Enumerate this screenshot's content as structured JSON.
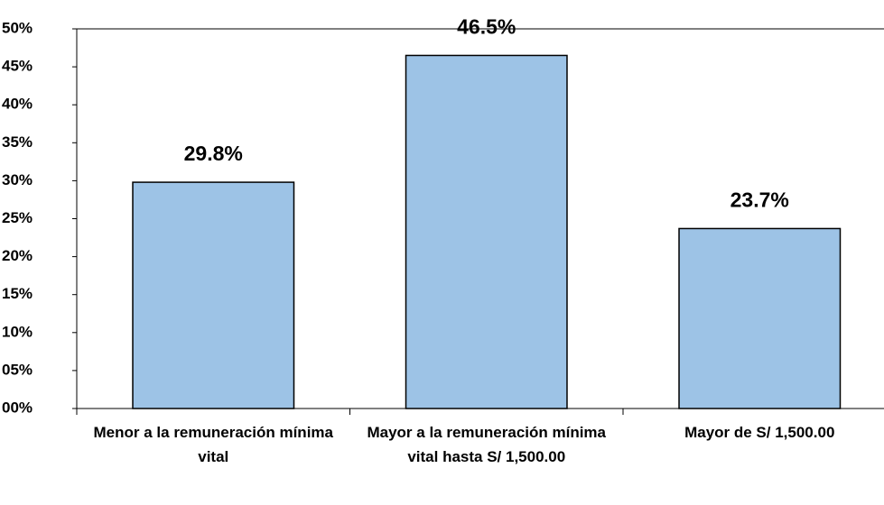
{
  "chart_data": {
    "type": "bar",
    "categories": [
      "Menor a la remuneración mínima vital",
      "Mayor a la remuneración mínima vital hasta S/ 1,500.00",
      "Mayor de S/ 1,500.00"
    ],
    "values": [
      29.8,
      46.5,
      23.7
    ],
    "value_labels": [
      "29.8%",
      "46.5%",
      "23.7%"
    ],
    "color": "#9dc3e6",
    "ylim": [
      0,
      50
    ],
    "yticks": [
      {
        "value": 0,
        "label": "00%"
      },
      {
        "value": 5,
        "label": "05%"
      },
      {
        "value": 10,
        "label": "10%"
      },
      {
        "value": 15,
        "label": "15%"
      },
      {
        "value": 20,
        "label": "20%"
      },
      {
        "value": 25,
        "label": "25%"
      },
      {
        "value": 30,
        "label": "30%"
      },
      {
        "value": 35,
        "label": "35%"
      },
      {
        "value": 40,
        "label": "40%"
      },
      {
        "value": 45,
        "label": "45%"
      },
      {
        "value": 50,
        "label": "50%"
      }
    ],
    "grid": false
  }
}
